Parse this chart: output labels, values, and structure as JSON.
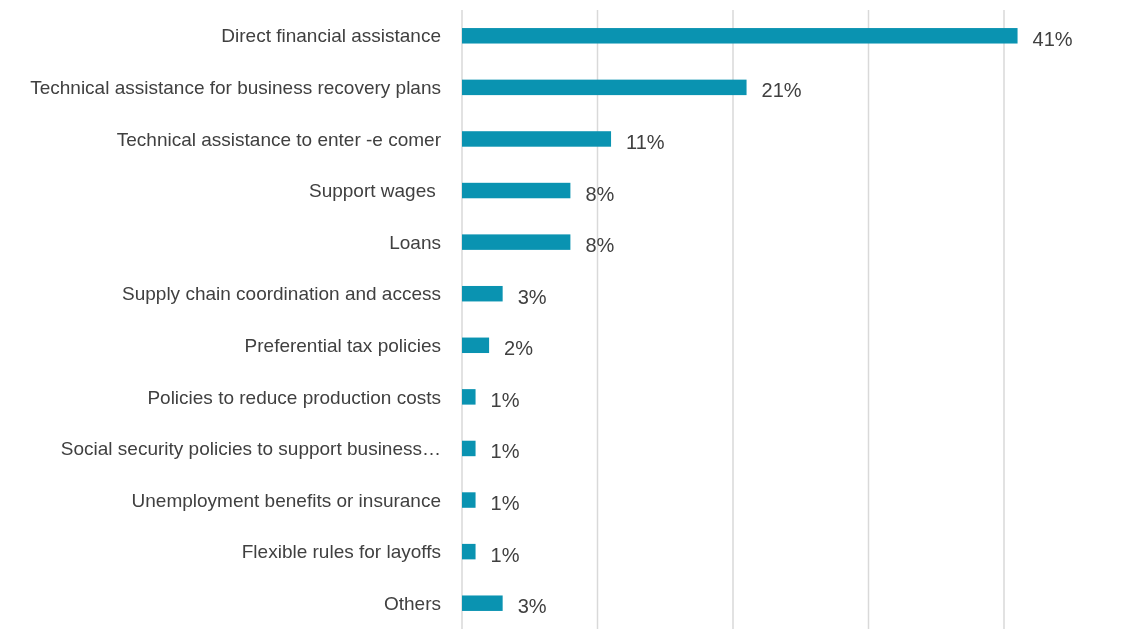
{
  "chart_data": {
    "type": "bar",
    "orientation": "horizontal",
    "categories": [
      "Direct financial assistance",
      "Technical assistance for business recovery plans",
      "Technical assistance to enter -e comer",
      "Support wages ",
      "Loans",
      "Supply chain coordination and access",
      "Preferential tax policies",
      "Policies to reduce production costs",
      "Social security policies to support business…",
      "Unemployment benefits or insurance",
      "Flexible rules for layoffs",
      "Others"
    ],
    "values": [
      41,
      21,
      11,
      8,
      8,
      3,
      2,
      1,
      1,
      1,
      1,
      3
    ],
    "value_labels": [
      "41%",
      "21%",
      "11%",
      "8%",
      "8%",
      "3%",
      "2%",
      "1%",
      "1%",
      "1%",
      "1%",
      "3%"
    ],
    "color": "#0a93b1",
    "xticks": [
      {
        "value": 0,
        "label": null
      },
      {
        "value": 10,
        "label": null
      },
      {
        "value": 20,
        "label": null
      },
      {
        "value": 30,
        "label": null
      },
      {
        "value": 40,
        "label": null
      }
    ],
    "grid": "x"
  }
}
